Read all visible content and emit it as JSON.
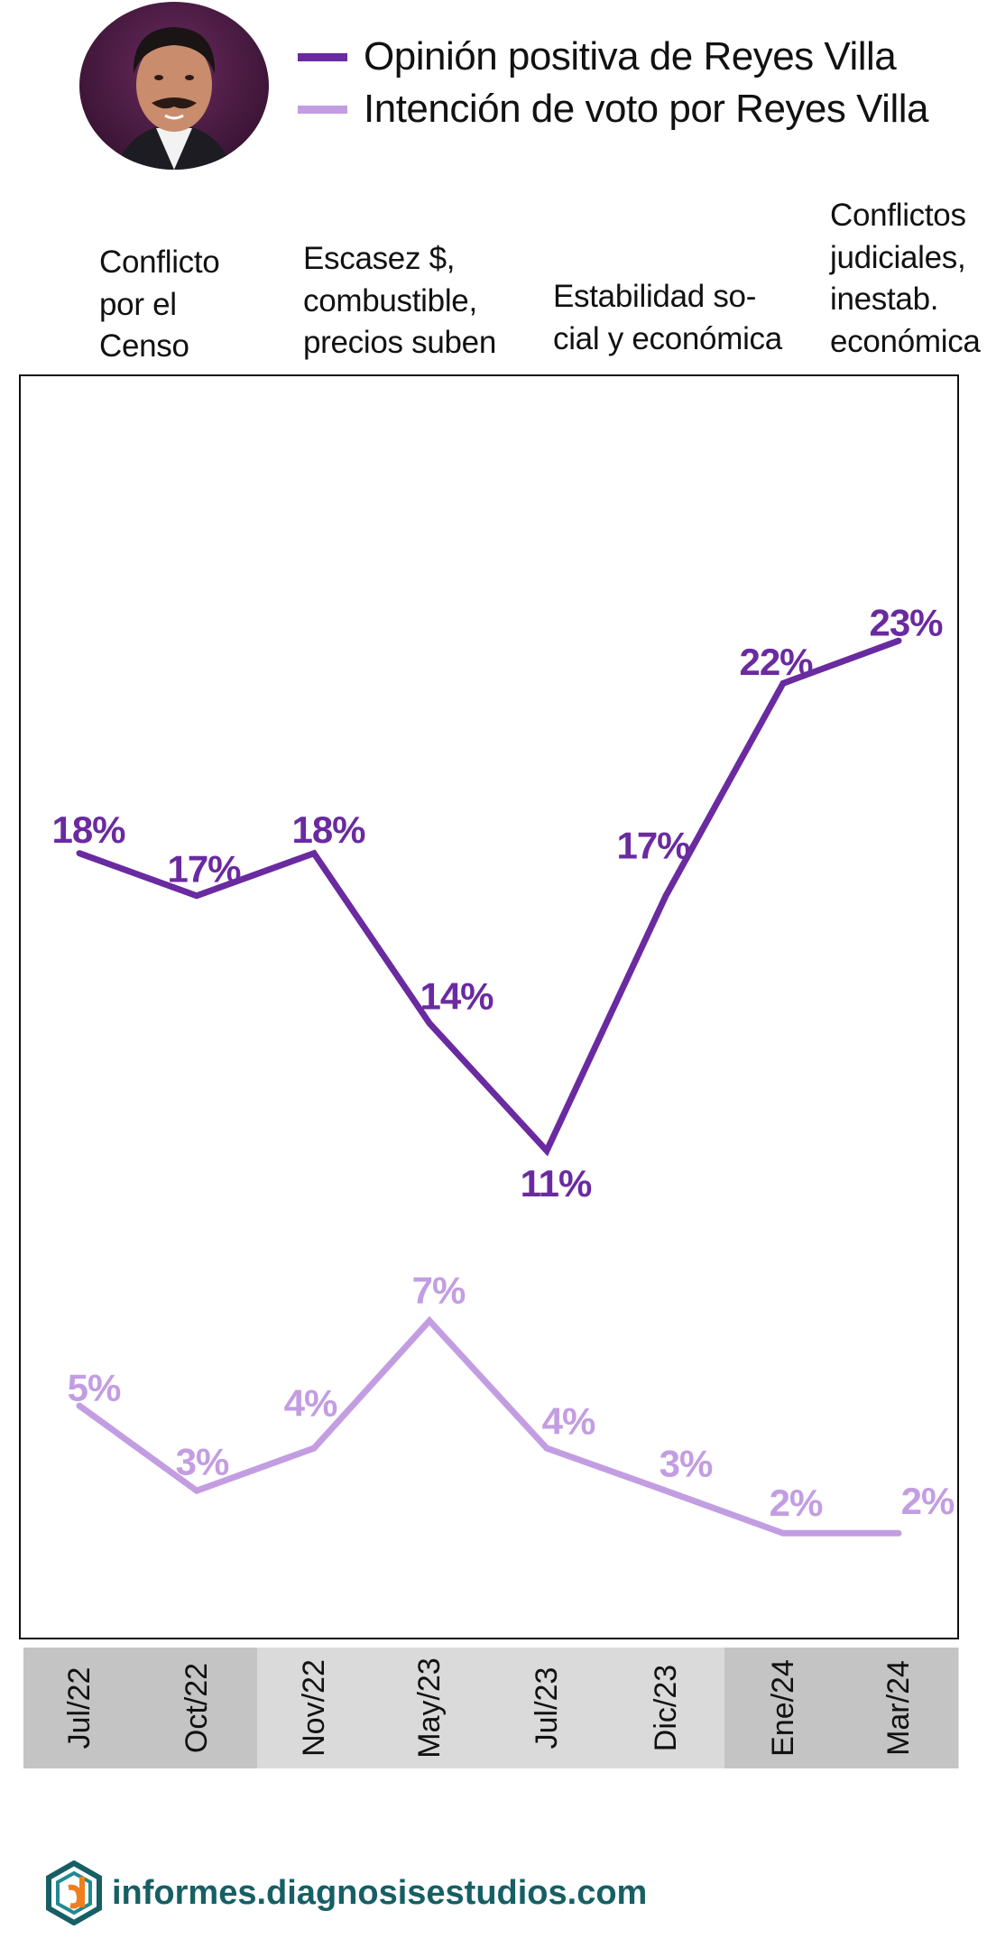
{
  "legend": [
    {
      "name": "Opinión positiva de Reyes Villa",
      "color": "#6a2aa0"
    },
    {
      "name": "Intención de voto por Reyes Villa",
      "color": "#c39de2"
    }
  ],
  "events": [
    "Conflicto\npor el\nCenso",
    "Escasez $,\ncombustible,\nprecios suben",
    "Estabilidad so-\ncial y económica",
    "Conflictos\njudiciales,\ninestab.\neconómica"
  ],
  "footer": {
    "text": "informes.diagnosisestudios.com",
    "icon": "diagnosis-logo-icon"
  },
  "portrait": {
    "icon": "politician-portrait"
  },
  "chart_data": {
    "type": "line",
    "categories": [
      "Jul/22",
      "Oct/22",
      "Nov/22",
      "May/23",
      "Jul/23",
      "Dic/23",
      "Ene/24",
      "Mar/24"
    ],
    "series": [
      {
        "name": "Opinión positiva de Reyes Villa",
        "color": "#6a2aa0",
        "values": [
          18,
          17,
          18,
          14,
          11,
          17,
          22,
          23
        ],
        "labels": [
          "18%",
          "17%",
          "18%",
          "14%",
          "11%",
          "17%",
          "22%",
          "23%"
        ]
      },
      {
        "name": "Intención de voto por Reyes Villa",
        "color": "#c39de2",
        "values": [
          5,
          3,
          4,
          7,
          4,
          3,
          2,
          2
        ],
        "labels": [
          "5%",
          "3%",
          "4%",
          "7%",
          "4%",
          "3%",
          "2%",
          "2%"
        ]
      }
    ],
    "unit": "%",
    "grid": false,
    "legend_position": "top"
  }
}
